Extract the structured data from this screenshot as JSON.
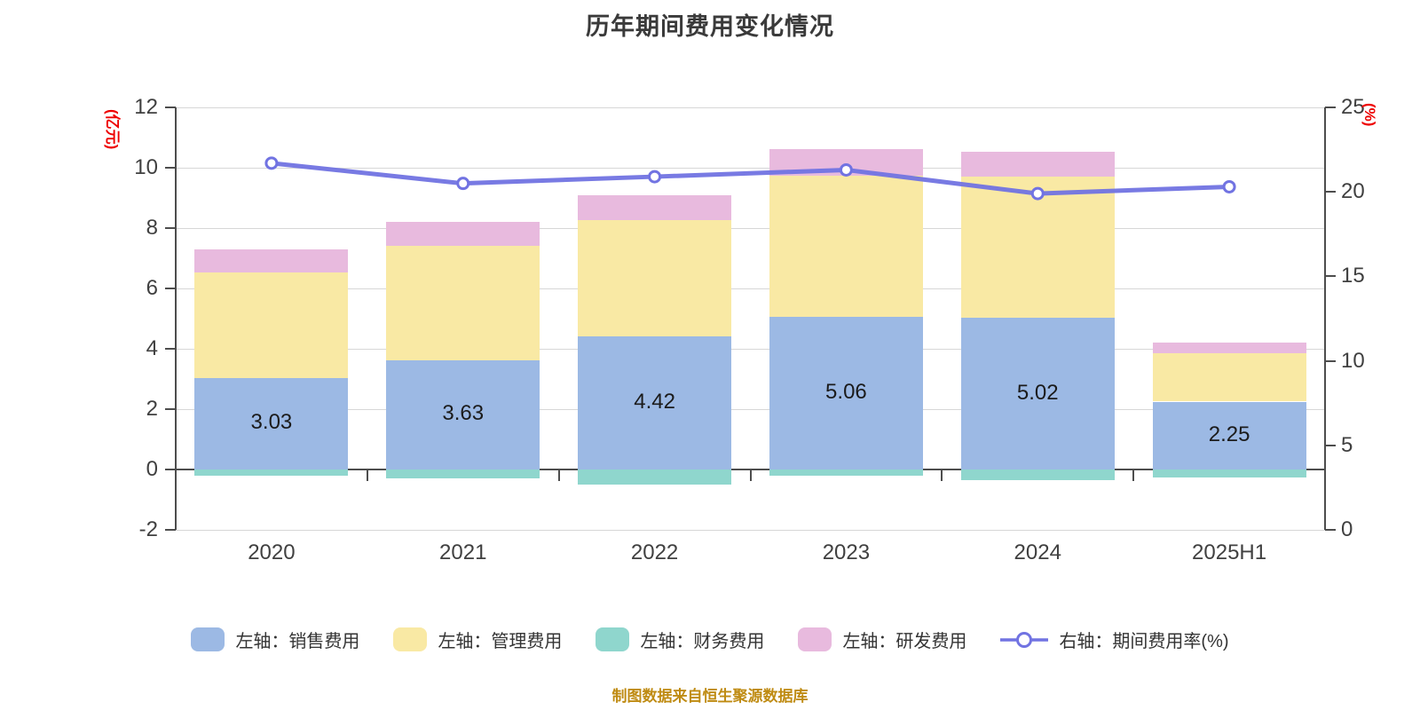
{
  "title": "历年期间费用变化情况",
  "footer": "制图数据来自恒生聚源数据库",
  "left_axis": {
    "label": "(亿元)",
    "min": -2,
    "max": 12,
    "ticks": [
      12,
      10,
      8,
      6,
      4,
      2,
      0,
      -2
    ]
  },
  "right_axis": {
    "label": "(%)",
    "min": 0,
    "max": 25,
    "ticks": [
      25,
      20,
      15,
      10,
      5,
      0
    ]
  },
  "colors": {
    "sales": "#9cb9e4",
    "management": "#f9e9a4",
    "finance": "#8fd6cd",
    "rnd": "#e8bade",
    "ratio_line": "#7173e2",
    "grid": "#d7d7d7",
    "axis": "#4d4d4d",
    "tick_text": "#404040",
    "unit_text": "#ee0000",
    "footer_text": "#bf8b12"
  },
  "legend": [
    {
      "key": "sales",
      "type": "rect",
      "label": "左轴：销售费用"
    },
    {
      "key": "management",
      "type": "rect",
      "label": "左轴：管理费用"
    },
    {
      "key": "finance",
      "type": "rect",
      "label": "左轴：财务费用"
    },
    {
      "key": "rnd",
      "type": "rect",
      "label": "左轴：研发费用"
    },
    {
      "key": "ratio",
      "type": "line",
      "label": "右轴：期间费用率(%)"
    }
  ],
  "chart_data": {
    "type": "bar",
    "subtype": "stacked-bars-with-line",
    "categories": [
      "2020",
      "2021",
      "2022",
      "2023",
      "2024",
      "2025H1"
    ],
    "series": [
      {
        "key": "sales",
        "name": "左轴：销售费用",
        "type": "bar",
        "axis": "left",
        "values": [
          3.03,
          3.63,
          4.42,
          5.06,
          5.02,
          2.25
        ]
      },
      {
        "key": "management",
        "name": "左轴：管理费用",
        "type": "bar",
        "axis": "left",
        "values": [
          3.5,
          3.79,
          3.84,
          4.68,
          4.68,
          1.61
        ]
      },
      {
        "key": "finance",
        "name": "左轴：财务费用",
        "type": "bar",
        "axis": "left",
        "values": [
          -0.21,
          -0.28,
          -0.5,
          -0.21,
          -0.35,
          -0.25
        ]
      },
      {
        "key": "rnd",
        "name": "左轴：研发费用",
        "type": "bar",
        "axis": "left",
        "values": [
          0.77,
          0.79,
          0.83,
          0.89,
          0.84,
          0.35
        ]
      },
      {
        "key": "ratio",
        "name": "右轴：期间费用率(%)",
        "type": "line",
        "axis": "right",
        "values": [
          21.7,
          20.5,
          20.9,
          21.3,
          19.9,
          20.3
        ]
      }
    ],
    "bar_labels": [
      "3.63",
      "4.42",
      "5.06",
      "5.02",
      "2.25"
    ],
    "bar_labels_note": "label printed inside blue sales segment of each bar",
    "bar_labels_full": [
      "3.03",
      "3.63",
      "4.42",
      "5.06",
      "5.02",
      "2.25"
    ],
    "xlabel": "",
    "ylabel_left": "(亿元)",
    "ylabel_right": "(%)",
    "ylim_left": [
      -2,
      12
    ],
    "ylim_right": [
      0,
      25
    ],
    "grid": true,
    "legend_position": "bottom"
  }
}
